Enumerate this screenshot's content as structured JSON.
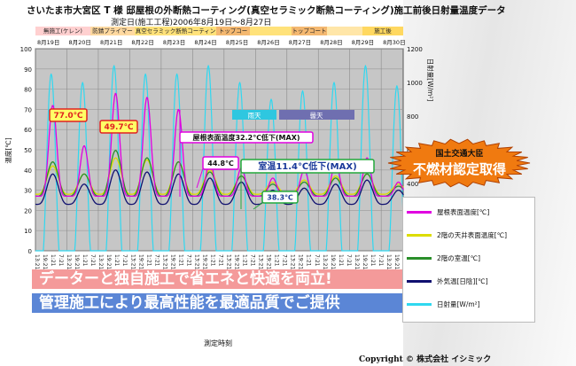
{
  "header": {
    "title": "さいたま市大宮区 T 様 邸屋根の外断熱コーティング(真空セラミック断熱コーティング)施工前後日射量温度データ",
    "subtitle": "測定日(施工工程)2006年8月19日～8月27日"
  },
  "phases": [
    {
      "label": "無施工(ケレン)",
      "color": "#ffd0d0"
    },
    {
      "label": "防錆プライマー",
      "color": "#ffd9a0"
    },
    {
      "label": "真空セラミック断熱コーティング(1)(2)(3)",
      "color": "#ffe27a"
    },
    {
      "label": "トップコート",
      "color": "#f4b870"
    },
    {
      "label": "",
      "color": "#ffe27a"
    },
    {
      "label": "トップコート",
      "color": "#f4b870"
    },
    {
      "label": "",
      "color": "#ffe6a8"
    },
    {
      "label": "施工後",
      "color": "#ffd860"
    }
  ],
  "banners": {
    "line1": "データーと独自施工で省エネと快適を両立!",
    "line2": "管理施工により最高性能を最適品質でご提供"
  },
  "badge": {
    "line1": "国土交通大臣",
    "line2": "不燃材認定取得"
  },
  "copyright": "Copyright © 株式会社 イシミック",
  "colors": {
    "roof": "#e000e0",
    "ceiling": "#dddd00",
    "room": "#2a8f2a",
    "outdoor": "#101070",
    "solar": "#30d8f0"
  },
  "chart_data": {
    "type": "line",
    "title": "",
    "xlabel": "測定時刻",
    "ylabel": "温度[℃]",
    "y2label": "日射量[W/m²]",
    "ylim": [
      0,
      100
    ],
    "yticks": [
      0,
      10,
      20,
      30,
      40,
      50,
      60,
      70,
      80,
      90,
      100
    ],
    "y2lim": [
      0,
      1200
    ],
    "y2ticks": [
      0,
      200,
      400,
      600,
      800,
      1000,
      1200
    ],
    "date_labels": [
      "8月19日",
      "8月20日",
      "8月21日",
      "8月22日",
      "8月23日",
      "8月24日",
      "8月25日",
      "8月26日",
      "8月27日",
      "8月28日",
      "8月29日",
      "8月30日"
    ],
    "days_span": 11.7,
    "x_tick_labels": [
      "13:21",
      "19:21",
      "1:21",
      "7:21",
      "13:21",
      "19:21",
      "1:21",
      "7:21",
      "13:21",
      "19:21",
      "1:21",
      "7:21",
      "13:21",
      "19:21",
      "1:21",
      "7:21",
      "13:21",
      "19:21",
      "1:21",
      "7:21",
      "13:21",
      "19:21",
      "1:21",
      "7:21",
      "13:21",
      "19:21",
      "1:21",
      "7:21",
      "13:21",
      "19:21",
      "1:21",
      "7:21",
      "13:21",
      "19:21",
      "1:21",
      "7:21",
      "13:21",
      "19:21",
      "1:21",
      "7:21",
      "13:21",
      "19:21",
      "1:21",
      "7:21",
      "13:21",
      "19:21",
      "1:21"
    ],
    "series": [
      {
        "name": "屋根表面温度[℃]",
        "key": "roof",
        "axis": "left",
        "daily_peaks": [
          72,
          52,
          78,
          76,
          70,
          44,
          41,
          36,
          40,
          44,
          46,
          34
        ],
        "night_min": 27
      },
      {
        "name": "2階の天井表面温度[℃]",
        "key": "ceiling",
        "axis": "left",
        "daily_peaks": [
          42,
          38,
          46,
          45,
          44,
          40,
          37,
          34,
          35,
          37,
          38,
          33
        ],
        "night_min": 28
      },
      {
        "name": "2階の室温[℃]",
        "key": "room",
        "axis": "left",
        "daily_peaks": [
          44,
          38,
          49.7,
          46,
          44,
          39,
          37,
          33,
          34,
          36,
          38,
          32
        ],
        "night_min": 27
      },
      {
        "name": "外気温[日陰][℃]",
        "key": "outdoor",
        "axis": "left",
        "daily_peaks": [
          38,
          33,
          40,
          39,
          38,
          36,
          34,
          30,
          31,
          33,
          35,
          30
        ],
        "night_min": 23
      },
      {
        "name": "日射量[W/m²]",
        "key": "solar",
        "axis": "right",
        "daily_peaks": [
          1050,
          1000,
          1100,
          1050,
          1050,
          1100,
          1000,
          900,
          950,
          1000,
          1100,
          980
        ],
        "night_min": 0
      }
    ],
    "weather": [
      {
        "label": "雨天"
      },
      {
        "label": "曇天"
      }
    ],
    "annotations": [
      {
        "text": "77.0℃",
        "day": 0.1,
        "value": 77,
        "style": "yellow-red"
      },
      {
        "text": "49.7℃",
        "day": 2.7,
        "value": 49.7,
        "style": "yellow-red"
      },
      {
        "text": "屋根表面温度32.2℃低下(MAX)",
        "day": 3.55,
        "value": 66,
        "style": "box-magenta"
      },
      {
        "text": "44.8℃",
        "day": 5.5,
        "value": 44.8,
        "style": "box-magenta"
      },
      {
        "text": "室温11.4℃低下(MAX)",
        "day": 6.15,
        "value": 53,
        "style": "box-green"
      },
      {
        "text": "38.3℃",
        "day": 6.5,
        "value": 38.3,
        "style": "box-green"
      }
    ],
    "grid": true,
    "legend": "right"
  }
}
